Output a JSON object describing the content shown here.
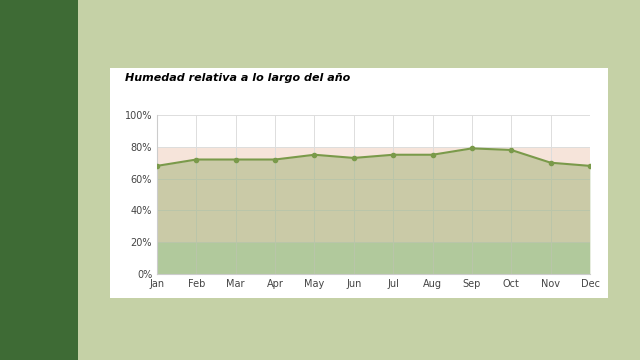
{
  "chart_data": {
    "type": "line",
    "title": "Humedad relativa a lo largo del año",
    "categories": [
      "Jan",
      "Feb",
      "Mar",
      "Apr",
      "May",
      "Jun",
      "Jul",
      "Aug",
      "Sep",
      "Oct",
      "Nov",
      "Dec"
    ],
    "values": [
      68,
      72,
      72,
      72,
      75,
      73,
      75,
      75,
      79,
      78,
      70,
      68
    ],
    "color": "#7a9a4a",
    "marker": "circle",
    "ylim": [
      0,
      100
    ],
    "yticks": [
      {
        "value": 0,
        "label": "0%"
      },
      {
        "value": 20,
        "label": "20%"
      },
      {
        "value": 40,
        "label": "40%"
      },
      {
        "value": 60,
        "label": "60%"
      },
      {
        "value": 80,
        "label": "80%"
      },
      {
        "value": 100,
        "label": "100%"
      }
    ],
    "bands": [
      {
        "from": 0,
        "to": 20,
        "color": "#cfe3c9"
      },
      {
        "from": 20,
        "to": 80,
        "color": "#f6e4da"
      }
    ],
    "grid": true
  }
}
